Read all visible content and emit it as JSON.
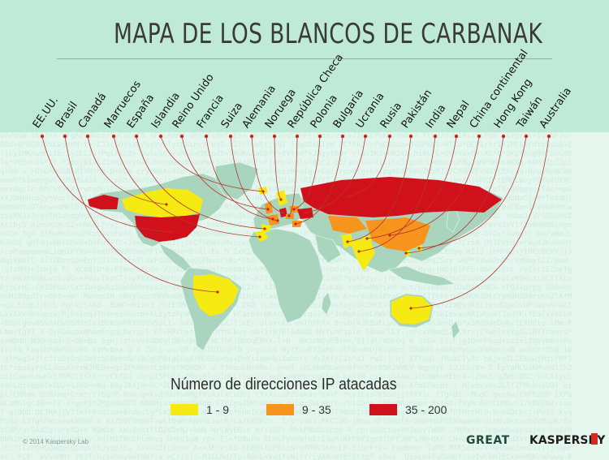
{
  "title": "MAPA DE LOS BLANCOS DE CARBANAK",
  "countries": [
    {
      "label": "EE.UU.",
      "level": "35 - 200"
    },
    {
      "label": "Brasil",
      "level": "1 - 9"
    },
    {
      "label": "Canadá",
      "level": "1 - 9"
    },
    {
      "label": "Marruecos",
      "level": "1 - 9"
    },
    {
      "label": "España",
      "level": "1 - 9"
    },
    {
      "label": "Islandia",
      "level": "1 - 9"
    },
    {
      "label": "Reino Unido",
      "level": "9 - 35"
    },
    {
      "label": "Francia",
      "level": "9 - 35"
    },
    {
      "label": "Suiza",
      "level": "1 - 9"
    },
    {
      "label": "Alemania",
      "level": "35 - 200"
    },
    {
      "label": "Noruega",
      "level": "1 - 9"
    },
    {
      "label": "República Checa",
      "level": "9 - 35"
    },
    {
      "label": "Polonia",
      "level": "9 - 35"
    },
    {
      "label": "Bulgaria",
      "level": "9 - 35"
    },
    {
      "label": "Ucrania",
      "level": "35 - 200"
    },
    {
      "label": "Rusia",
      "level": "35 - 200"
    },
    {
      "label": "Pakistán",
      "level": "1 - 9"
    },
    {
      "label": "India",
      "level": "1 - 9"
    },
    {
      "label": "Nepal",
      "level": "1 - 9"
    },
    {
      "label": "China continental",
      "level": "9 - 35"
    },
    {
      "label": "Hong Kong",
      "level": "1 - 9"
    },
    {
      "label": "Taiwán",
      "level": "1 - 9"
    },
    {
      "label": "Australia",
      "level": "1 - 9"
    }
  ],
  "legend": {
    "title": "Número de direcciones IP atacadas",
    "items": [
      {
        "label": "1 - 9",
        "color": "#f5ea12"
      },
      {
        "label": "9 - 35",
        "color": "#f7941d"
      },
      {
        "label": "35 - 200",
        "color": "#d0111b"
      }
    ]
  },
  "colors": {
    "land": "#a9d5bf",
    "leader_line": "#b5362b"
  },
  "footer": {
    "copyright": "© 2014 Kaspersky Lab",
    "logo_great": "GREAT",
    "logo_kaspersky": "KASPERSKY"
  }
}
